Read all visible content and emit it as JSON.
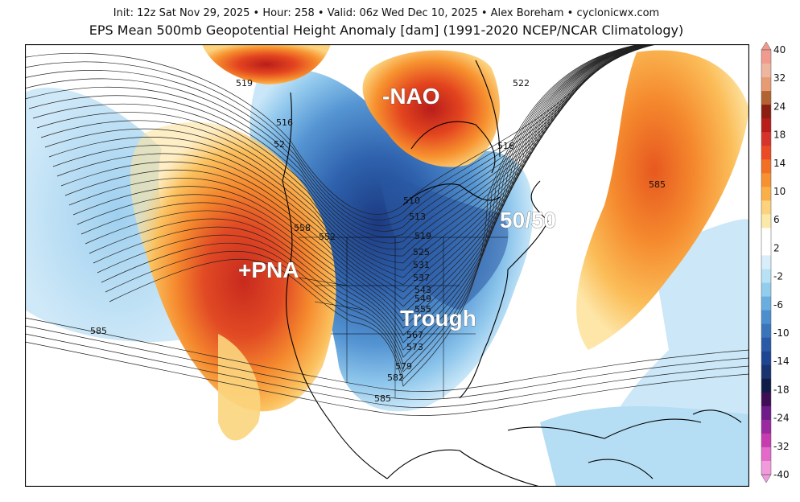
{
  "header": {
    "meta_line": "Init: 12z Sat Nov 29, 2025  •  Hour: 258  •  Valid: 06z Wed Dec 10, 2025  •  Alex Boreham  •  cyclonicwx.com",
    "title": "EPS Mean 500mb Geopotential Height Anomaly [dam] (1991-2020 NCEP/NCAR Climatology)"
  },
  "annotations": {
    "nao": "-NAO",
    "pna": "+PNA",
    "fifty": "50/50",
    "trough": "Trough"
  },
  "contour_labels": [
    {
      "id": "c519a",
      "text": "519"
    },
    {
      "id": "c516a",
      "text": "516"
    },
    {
      "id": "c522a",
      "text": "522"
    },
    {
      "id": "c516b",
      "text": "516"
    },
    {
      "id": "c52x",
      "text": "52"
    },
    {
      "id": "c510",
      "text": "510"
    },
    {
      "id": "c513",
      "text": "513"
    },
    {
      "id": "c519b",
      "text": "519"
    },
    {
      "id": "c525",
      "text": "525"
    },
    {
      "id": "c531",
      "text": "531"
    },
    {
      "id": "c537",
      "text": "537"
    },
    {
      "id": "c543",
      "text": "543"
    },
    {
      "id": "c549",
      "text": "549"
    },
    {
      "id": "c555",
      "text": "555"
    },
    {
      "id": "c558",
      "text": "558"
    },
    {
      "id": "c552",
      "text": "552"
    },
    {
      "id": "c567",
      "text": "567"
    },
    {
      "id": "c573",
      "text": "573"
    },
    {
      "id": "c579",
      "text": "579"
    },
    {
      "id": "c582",
      "text": "582"
    },
    {
      "id": "c585a",
      "text": "585"
    },
    {
      "id": "c585b",
      "text": "585"
    },
    {
      "id": "c585c",
      "text": "585"
    }
  ],
  "colorbar": {
    "ticks": [
      "40",
      "32",
      "24",
      "18",
      "14",
      "10",
      "6",
      "2",
      "-2",
      "-6",
      "-10",
      "-14",
      "-18",
      "-24",
      "-32",
      "-40"
    ],
    "colors": [
      "#f19b8f",
      "#eeb59f",
      "#e89a73",
      "#b26330",
      "#8c1f12",
      "#b81d1a",
      "#d6332a",
      "#ec4a25",
      "#f36f24",
      "#f7912f",
      "#fbb047",
      "#fdd27c",
      "#fbe9a7",
      "#ffffff",
      "#ffffff",
      "#d8eefa",
      "#b8e1f5",
      "#93cdee",
      "#6aaee0",
      "#4c8fcf",
      "#3a74bb",
      "#2a5aa7",
      "#1e4591",
      "#18336f",
      "#101c47",
      "#3f0c56",
      "#6e1a8a",
      "#9a2a9f",
      "#c63cb0",
      "#e36ac9",
      "#f19bdc"
    ]
  },
  "colors": {
    "ridge_dark": "#c8281c",
    "ridge_mid": "#f07a2a",
    "ridge_light": "#fbd57e",
    "trough_dark": "#1d3f86",
    "trough_mid": "#3d7cc4",
    "trough_light": "#a9d6f2"
  }
}
